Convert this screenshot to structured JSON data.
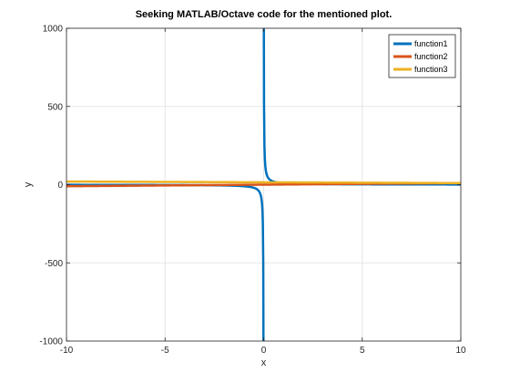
{
  "chart_data": {
    "type": "line",
    "title": "Seeking MATLAB/Octave code for the mentioned plot.",
    "xlabel": "x",
    "ylabel": "y",
    "xlim": [
      -10,
      10
    ],
    "ylim": [
      -1000,
      1000
    ],
    "xticks": [
      -10,
      -5,
      0,
      5,
      10
    ],
    "yticks": [
      -1000,
      -500,
      0,
      500,
      1000
    ],
    "grid": true,
    "legend": "top-right",
    "series": [
      {
        "name": "function1",
        "color": "#0072BD",
        "expression": "10/x"
      },
      {
        "name": "function2",
        "color": "#D95319",
        "expression": "x"
      },
      {
        "name": "function3",
        "color": "#EDB120",
        "expression": "-x/2 + 15"
      }
    ]
  }
}
